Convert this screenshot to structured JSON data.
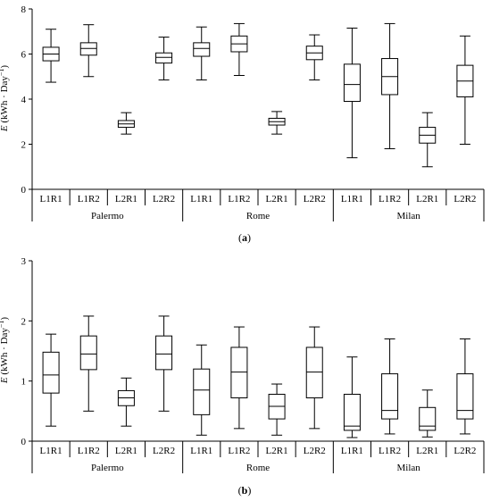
{
  "chart_data": [
    {
      "type": "boxplot",
      "panel_label": "a",
      "ylabel": "E (kWh · Day⁻¹)",
      "ylabel_parts": {
        "sym": "E",
        "unit": " (kWh · Day",
        "exp": "−1",
        "close": ")"
      },
      "ylim": [
        0,
        8
      ],
      "yticks": [
        0,
        2,
        4,
        6,
        8
      ],
      "groups": [
        "Palermo",
        "Rome",
        "Milan"
      ],
      "categories": [
        "L1R1",
        "L1R2",
        "L2R1",
        "L2R2",
        "L1R1",
        "L1R2",
        "L2R1",
        "L2R2",
        "L1R1",
        "L1R2",
        "L2R1",
        "L2R2"
      ],
      "boxes": [
        {
          "min": 4.75,
          "q1": 5.7,
          "median": 6.0,
          "q3": 6.3,
          "max": 7.1
        },
        {
          "min": 5.0,
          "q1": 5.95,
          "median": 6.25,
          "q3": 6.5,
          "max": 7.3
        },
        {
          "min": 2.45,
          "q1": 2.75,
          "median": 2.9,
          "q3": 3.05,
          "max": 3.4
        },
        {
          "min": 4.85,
          "q1": 5.6,
          "median": 5.85,
          "q3": 6.05,
          "max": 6.75
        },
        {
          "min": 4.85,
          "q1": 5.9,
          "median": 6.25,
          "q3": 6.5,
          "max": 7.2
        },
        {
          "min": 5.05,
          "q1": 6.1,
          "median": 6.45,
          "q3": 6.8,
          "max": 7.35
        },
        {
          "min": 2.45,
          "q1": 2.85,
          "median": 3.0,
          "q3": 3.15,
          "max": 3.45
        },
        {
          "min": 4.85,
          "q1": 5.75,
          "median": 6.05,
          "q3": 6.35,
          "max": 6.85
        },
        {
          "min": 1.4,
          "q1": 3.9,
          "median": 4.65,
          "q3": 5.55,
          "max": 7.15
        },
        {
          "min": 1.8,
          "q1": 4.2,
          "median": 5.0,
          "q3": 5.8,
          "max": 7.35
        },
        {
          "min": 1.0,
          "q1": 2.05,
          "median": 2.4,
          "q3": 2.75,
          "max": 3.4
        },
        {
          "min": 2.0,
          "q1": 4.1,
          "median": 4.8,
          "q3": 5.5,
          "max": 6.8
        }
      ]
    },
    {
      "type": "boxplot",
      "panel_label": "b",
      "ylabel": "E (kWh · Day⁻¹)",
      "ylabel_parts": {
        "sym": "E",
        "unit": " (kWh · Day",
        "exp": "−1",
        "close": ")"
      },
      "ylim": [
        0,
        3
      ],
      "yticks": [
        0,
        1,
        2,
        3
      ],
      "groups": [
        "Palermo",
        "Rome",
        "Milan"
      ],
      "categories": [
        "L1R1",
        "L1R2",
        "L2R1",
        "L2R2",
        "L1R1",
        "L1R2",
        "L2R1",
        "L2R2",
        "L1R1",
        "L1R2",
        "L2R1",
        "L2R2"
      ],
      "boxes": [
        {
          "min": 0.25,
          "q1": 0.8,
          "median": 1.1,
          "q3": 1.48,
          "max": 1.78
        },
        {
          "min": 0.5,
          "q1": 1.19,
          "median": 1.45,
          "q3": 1.75,
          "max": 2.08
        },
        {
          "min": 0.25,
          "q1": 0.59,
          "median": 0.72,
          "q3": 0.84,
          "max": 1.05
        },
        {
          "min": 0.5,
          "q1": 1.19,
          "median": 1.45,
          "q3": 1.75,
          "max": 2.08
        },
        {
          "min": 0.1,
          "q1": 0.44,
          "median": 0.85,
          "q3": 1.2,
          "max": 1.6
        },
        {
          "min": 0.21,
          "q1": 0.72,
          "median": 1.15,
          "q3": 1.56,
          "max": 1.9
        },
        {
          "min": 0.1,
          "q1": 0.37,
          "median": 0.58,
          "q3": 0.78,
          "max": 0.95
        },
        {
          "min": 0.21,
          "q1": 0.72,
          "median": 1.15,
          "q3": 1.56,
          "max": 1.9
        },
        {
          "min": 0.06,
          "q1": 0.18,
          "median": 0.25,
          "q3": 0.78,
          "max": 1.4
        },
        {
          "min": 0.12,
          "q1": 0.37,
          "median": 0.51,
          "q3": 1.12,
          "max": 1.7
        },
        {
          "min": 0.07,
          "q1": 0.18,
          "median": 0.25,
          "q3": 0.56,
          "max": 0.85
        },
        {
          "min": 0.12,
          "q1": 0.37,
          "median": 0.51,
          "q3": 1.12,
          "max": 1.7
        }
      ]
    }
  ]
}
